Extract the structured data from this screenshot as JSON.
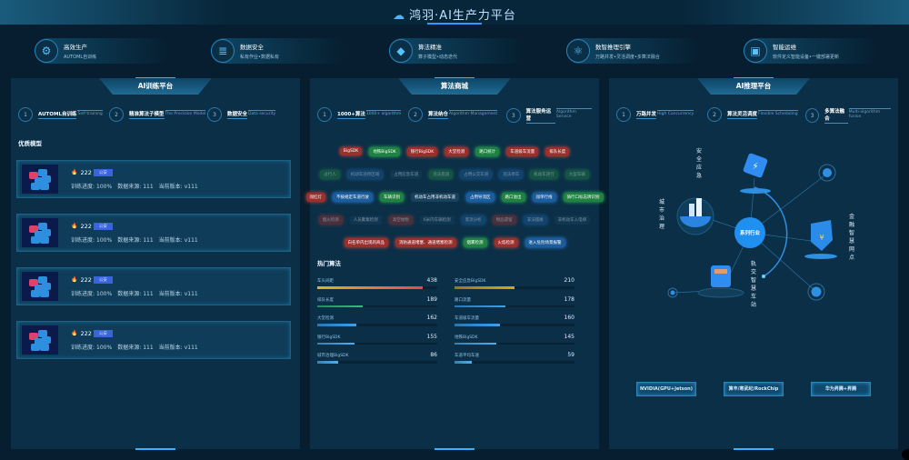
{
  "header": {
    "title": "鸿羽·AI生产力平台"
  },
  "features": [
    {
      "icon": "gear-icon",
      "title": "高效生产",
      "sub": "AUTOML自训练"
    },
    {
      "icon": "database-icon",
      "title": "数据安全",
      "sub": "私有作业•数据私有"
    },
    {
      "icon": "cube-icon",
      "title": "算法精准",
      "sub": "算子模型•动态迭代"
    },
    {
      "icon": "atom-icon",
      "title": "数智推理引擎",
      "sub": "万路并发•灵活调度•多算法融合"
    },
    {
      "icon": "monitor-icon",
      "title": "智能运维",
      "sub": "软件定义智能设备•一键部署更新"
    }
  ],
  "training": {
    "title": "AI训练平台",
    "steps": [
      {
        "n": "1",
        "a": "AUTOML自训练",
        "b": "Self training"
      },
      {
        "n": "2",
        "a": "精准算法子模型",
        "b": "The Precision Model"
      },
      {
        "n": "3",
        "a": "数据安全",
        "b": "Data security"
      }
    ],
    "section": "优质模型",
    "cards": [
      {
        "count": "222",
        "badge": "公安",
        "progress_label": "训练进度:",
        "progress": "100%",
        "source_label": "数据来源:",
        "source": "111",
        "version_label": "当前版本:",
        "version": "v111"
      },
      {
        "count": "222",
        "badge": "公安",
        "progress_label": "训练进度:",
        "progress": "100%",
        "source_label": "数据来源:",
        "source": "111",
        "version_label": "当前版本:",
        "version": "v111"
      },
      {
        "count": "222",
        "badge": "公安",
        "progress_label": "训练进度:",
        "progress": "100%",
        "source_label": "数据来源:",
        "source": "111",
        "version_label": "当前版本:",
        "version": "v111"
      },
      {
        "count": "222",
        "badge": "公安",
        "progress_label": "训练进度:",
        "progress": "100%",
        "source_label": "数据来源:",
        "source": "111",
        "version_label": "当前版本:",
        "version": "v111"
      }
    ]
  },
  "store": {
    "title": "算法商城",
    "steps": [
      {
        "n": "1",
        "a": "1000+算法",
        "b": "1000+ algorithm"
      },
      {
        "n": "2",
        "a": "算法纳仓",
        "b": "Algorithm Management"
      },
      {
        "n": "3",
        "a": "算法服务运营",
        "b": "Algorithm Service"
      }
    ],
    "tag_rows": [
      {
        "faded": false,
        "tags": [
          {
            "t": "BigSDK",
            "c": "red"
          },
          {
            "t": "地铁BigSDK",
            "c": "green"
          },
          {
            "t": "银行BigSDK",
            "c": "red"
          },
          {
            "t": "大堂检测",
            "c": "red"
          },
          {
            "t": "路口统计",
            "c": "green"
          },
          {
            "t": "车道级车流量",
            "c": "red"
          },
          {
            "t": "排队长度",
            "c": "red"
          }
        ]
      },
      {
        "faded": true,
        "tags": [
          {
            "t": "过行人",
            "c": "green"
          },
          {
            "t": "机动车违停区域",
            "c": "blue"
          },
          {
            "t": "占用应急车道",
            "c": "plain"
          },
          {
            "t": "违法变道",
            "c": "green"
          },
          {
            "t": "占用公交车道",
            "c": "blue"
          },
          {
            "t": "违法停车",
            "c": "blue"
          },
          {
            "t": "机动车逆行",
            "c": "green"
          },
          {
            "t": "大型车辆",
            "c": "green"
          }
        ]
      },
      {
        "faded": false,
        "tags": [
          {
            "t": "闯红灯",
            "c": "red"
          },
          {
            "t": "不按规定车道行驶",
            "c": "blue"
          },
          {
            "t": "车辆识别",
            "c": "green"
          },
          {
            "t": "机动车占用非机动车道",
            "c": "plain"
          },
          {
            "t": "占用导流区",
            "c": "blue"
          },
          {
            "t": "路口溢出",
            "c": "green"
          },
          {
            "t": "闯单行线",
            "c": "blue"
          },
          {
            "t": "骑行口标志牌识别",
            "c": "green"
          }
        ]
      },
      {
        "faded": true,
        "tags": [
          {
            "t": "烟火检测",
            "c": "red"
          },
          {
            "t": "人员聚集检测",
            "c": "plain"
          },
          {
            "t": "高空抛物",
            "c": "red"
          },
          {
            "t": "6米内车辆检测",
            "c": "plain"
          },
          {
            "t": "客流分析",
            "c": "blue"
          },
          {
            "t": "物品遗留",
            "c": "red"
          },
          {
            "t": "非法摆摊",
            "c": "blue"
          },
          {
            "t": "非机动车入电梯",
            "c": "plain"
          }
        ]
      },
      {
        "faded": false,
        "tags": [
          {
            "t": "白名单内出现的商品",
            "c": "red"
          },
          {
            "t": "消防通道堵塞、通道堵塞检测",
            "c": "red"
          },
          {
            "t": "烟雾检测",
            "c": "green"
          },
          {
            "t": "火焰检测",
            "c": "red"
          },
          {
            "t": "进入危险场景报警",
            "c": "blue"
          }
        ]
      }
    ],
    "hot_title": "热门算法",
    "hot_left": [
      {
        "name": "车头间距",
        "value": 438,
        "color": "#e0a030"
      },
      {
        "name": "排队长度",
        "value": 189,
        "color": "#2fc07a"
      },
      {
        "name": "大堂检测",
        "value": 162,
        "color": "#3aa0f0"
      },
      {
        "name": "银行BigSDK",
        "value": 155,
        "color": "#4ab0f0"
      },
      {
        "name": "城市治理BigSDK",
        "value": 86,
        "color": "#4ab0f0"
      }
    ],
    "hot_right": [
      {
        "name": "安全应急BigSDK",
        "value": 210,
        "color": "#e0a020"
      },
      {
        "name": "路口流量",
        "value": 178,
        "color": "#3aa0f0"
      },
      {
        "name": "车道级车流量",
        "value": 160,
        "color": "#3aa0f0"
      },
      {
        "name": "地铁BigSDK",
        "value": 145,
        "color": "#4ab0f0"
      },
      {
        "name": "车道平均车速",
        "value": 59,
        "color": "#4ab0f0"
      }
    ]
  },
  "inference": {
    "title": "AI推理平台",
    "steps": [
      {
        "n": "1",
        "a": "万路并发",
        "b": "High Concurrency"
      },
      {
        "n": "2",
        "a": "算法灵活调度",
        "b": "Flexible Scheduling"
      },
      {
        "n": "3",
        "a": "多算法融合",
        "b": "Multi-algorithm fusion"
      }
    ],
    "center": "系列行业",
    "industries": [
      "安全应急",
      "城市治理",
      "金融智慧网点",
      "轨交智慧车站"
    ],
    "hardware": [
      "NVIDIA(GPU+Jetson)",
      "算丰/寒武纪/RockChip",
      "华为昇腾+昇腾"
    ]
  }
}
